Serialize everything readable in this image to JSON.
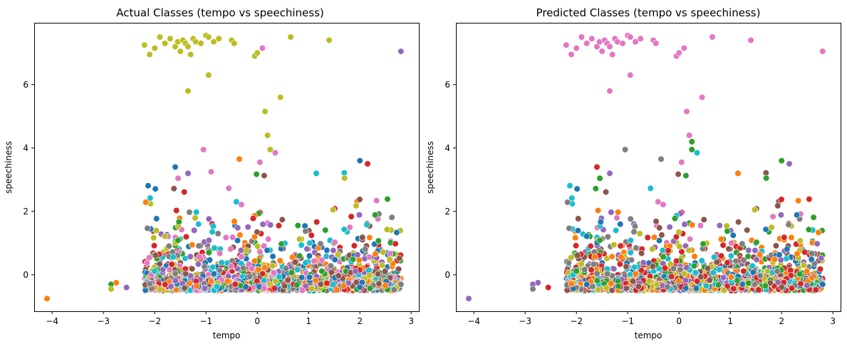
{
  "colors": [
    "#1f77b4",
    "#ff7f0e",
    "#2ca02c",
    "#d62728",
    "#9467bd",
    "#8c564b",
    "#e377c2",
    "#7f7f7f",
    "#bcbd22",
    "#17becf"
  ],
  "chart_data": [
    {
      "type": "scatter",
      "title": "Actual Classes (tempo vs speechiness)",
      "xlabel": "tempo",
      "ylabel": "speechiness",
      "xlim": [
        -4.35,
        3.15
      ],
      "ylim": [
        -1.15,
        7.95
      ],
      "xticks": [
        -4,
        -3,
        -2,
        -1,
        0,
        1,
        2,
        3
      ],
      "yticks": [
        0,
        2,
        4,
        6
      ],
      "grid": false,
      "legend": "none",
      "high_cluster_class": 8,
      "high_cluster": [
        [
          -2.2,
          7.25
        ],
        [
          -2.1,
          6.95
        ],
        [
          -2.0,
          7.15
        ],
        [
          -1.9,
          7.5
        ],
        [
          -1.8,
          7.3
        ],
        [
          -1.7,
          7.45
        ],
        [
          -1.6,
          7.2
        ],
        [
          -1.55,
          7.35
        ],
        [
          -1.5,
          7.05
        ],
        [
          -1.45,
          7.4
        ],
        [
          -1.4,
          7.3
        ],
        [
          -1.35,
          7.2
        ],
        [
          -1.3,
          6.95
        ],
        [
          -1.25,
          7.45
        ],
        [
          -1.2,
          7.35
        ],
        [
          -1.1,
          7.3
        ],
        [
          -1.0,
          7.55
        ],
        [
          -0.95,
          7.5
        ],
        [
          -0.85,
          7.35
        ],
        [
          -0.75,
          7.45
        ],
        [
          -0.5,
          7.4
        ],
        [
          -0.45,
          7.3
        ],
        [
          -0.05,
          6.9
        ],
        [
          0.0,
          7.0
        ],
        [
          0.65,
          7.5
        ],
        [
          1.4,
          7.4
        ],
        [
          -1.35,
          5.8
        ],
        [
          -0.95,
          6.3
        ],
        [
          0.45,
          5.6
        ],
        [
          0.15,
          5.15
        ],
        [
          0.2,
          4.4
        ],
        [
          0.25,
          3.95
        ]
      ],
      "points_shown": "dense cloud of roughly 3000 points, x from about -2.2 to 2.8, y mostly between -0.5 and 1.5, colored by 10 classes",
      "outliers": [
        [
          -4.1,
          -0.75,
          1
        ],
        [
          -2.85,
          -0.3,
          2
        ],
        [
          -2.85,
          -0.45,
          8
        ],
        [
          -2.75,
          -0.25,
          1
        ],
        [
          -2.55,
          -0.4,
          4
        ],
        [
          2.8,
          7.05,
          4
        ],
        [
          2.8,
          -0.3,
          7
        ],
        [
          0.1,
          7.15,
          6
        ],
        [
          -1.6,
          3.4,
          0
        ],
        [
          -1.35,
          3.2,
          4
        ],
        [
          -1.05,
          3.95,
          6
        ],
        [
          -0.9,
          3.25,
          6
        ],
        [
          -0.35,
          3.65,
          1
        ],
        [
          0.05,
          3.55,
          6
        ],
        [
          0.35,
          3.85,
          6
        ],
        [
          1.15,
          3.2,
          9
        ],
        [
          2.0,
          3.6,
          0
        ],
        [
          2.15,
          3.5,
          3
        ],
        [
          1.7,
          3.05,
          8
        ]
      ]
    },
    {
      "type": "scatter",
      "title": "Predicted Classes (tempo vs speechiness)",
      "xlabel": "tempo",
      "ylabel": "speechiness",
      "xlim": [
        -4.35,
        3.15
      ],
      "ylim": [
        -1.15,
        7.95
      ],
      "xticks": [
        -4,
        -3,
        -2,
        -1,
        0,
        1,
        2,
        3
      ],
      "yticks": [
        0,
        2,
        4,
        6
      ],
      "grid": false,
      "legend": "none",
      "high_cluster_class": 6,
      "high_cluster": [
        [
          -2.2,
          7.25
        ],
        [
          -2.1,
          6.95
        ],
        [
          -2.0,
          7.15
        ],
        [
          -1.9,
          7.5
        ],
        [
          -1.8,
          7.3
        ],
        [
          -1.7,
          7.45
        ],
        [
          -1.6,
          7.2
        ],
        [
          -1.55,
          7.35
        ],
        [
          -1.5,
          7.05
        ],
        [
          -1.45,
          7.4
        ],
        [
          -1.4,
          7.3
        ],
        [
          -1.35,
          7.2
        ],
        [
          -1.3,
          6.95
        ],
        [
          -1.25,
          7.45
        ],
        [
          -1.2,
          7.35
        ],
        [
          -1.1,
          7.3
        ],
        [
          -1.0,
          7.55
        ],
        [
          -0.95,
          7.5
        ],
        [
          -0.85,
          7.35
        ],
        [
          -0.75,
          7.45
        ],
        [
          -0.5,
          7.4
        ],
        [
          -0.45,
          7.3
        ],
        [
          -0.05,
          6.9
        ],
        [
          0.0,
          7.0
        ],
        [
          0.65,
          7.5
        ],
        [
          1.4,
          7.4
        ],
        [
          -1.35,
          5.8
        ],
        [
          -0.95,
          6.3
        ],
        [
          0.45,
          5.6
        ],
        [
          0.15,
          5.15
        ],
        [
          0.2,
          4.4
        ],
        [
          2.8,
          7.05
        ],
        [
          0.1,
          7.15
        ]
      ],
      "points_shown": "dense cloud of roughly 3000 points, x from about -2.2 to 2.8, y mostly between -0.5 and 1.5, colored by predicted class",
      "outliers": [
        [
          -4.1,
          -0.75,
          4
        ],
        [
          -2.85,
          -0.3,
          4
        ],
        [
          -2.85,
          -0.45,
          7
        ],
        [
          -2.75,
          -0.25,
          4
        ],
        [
          -2.55,
          -0.4,
          3
        ],
        [
          2.8,
          -0.3,
          0
        ],
        [
          0.25,
          4.2,
          2
        ],
        [
          0.25,
          3.95,
          2
        ],
        [
          -1.05,
          3.95,
          7
        ],
        [
          -1.35,
          3.2,
          4
        ],
        [
          -1.6,
          3.4,
          3
        ],
        [
          0.35,
          3.85,
          9
        ],
        [
          -0.35,
          3.65,
          7
        ],
        [
          0.05,
          3.55,
          6
        ],
        [
          2.0,
          3.6,
          2
        ],
        [
          2.15,
          3.5,
          4
        ],
        [
          1.15,
          3.2,
          1
        ],
        [
          1.7,
          3.05,
          2
        ]
      ]
    }
  ]
}
